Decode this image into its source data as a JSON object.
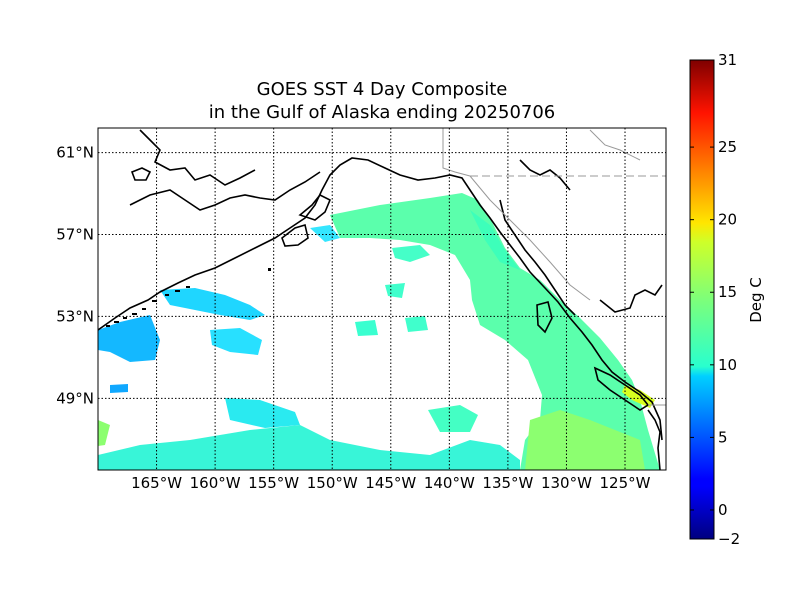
{
  "title": {
    "line1": "GOES SST 4 Day Composite",
    "line2": "in the Gulf of Alaska ending 20250706"
  },
  "map": {
    "region": "Gulf of Alaska",
    "projection": "equirectangular",
    "lon_range": [
      -170,
      -121.5
    ],
    "lat_range": [
      45.5,
      62.2
    ],
    "lat_ticks": [
      {
        "value": 61,
        "label": "61°N"
      },
      {
        "value": 57,
        "label": "57°N"
      },
      {
        "value": 53,
        "label": "53°N"
      },
      {
        "value": 49,
        "label": "49°N"
      }
    ],
    "lon_ticks": [
      {
        "value": -165,
        "label": "165°W"
      },
      {
        "value": -160,
        "label": "160°W"
      },
      {
        "value": -155,
        "label": "155°W"
      },
      {
        "value": -150,
        "label": "150°W"
      },
      {
        "value": -145,
        "label": "145°W"
      },
      {
        "value": -140,
        "label": "140°W"
      },
      {
        "value": -135,
        "label": "135°W"
      },
      {
        "value": -130,
        "label": "130°W"
      },
      {
        "value": -125,
        "label": "125°W"
      }
    ],
    "gridlines": "dotted",
    "land_color": "#ffffff",
    "coastline_color": "#000000"
  },
  "colorbar": {
    "label": "Deg C",
    "min": -2,
    "max": 31,
    "colormap": "jet",
    "ticks": [
      {
        "value": 31,
        "label": "31"
      },
      {
        "value": 25,
        "label": "25"
      },
      {
        "value": 20,
        "label": "20"
      },
      {
        "value": 15,
        "label": "15"
      },
      {
        "value": 10,
        "label": "10"
      },
      {
        "value": 5,
        "label": "5"
      },
      {
        "value": 0,
        "label": "0"
      },
      {
        "value": -2,
        "label": "−2"
      }
    ]
  }
}
